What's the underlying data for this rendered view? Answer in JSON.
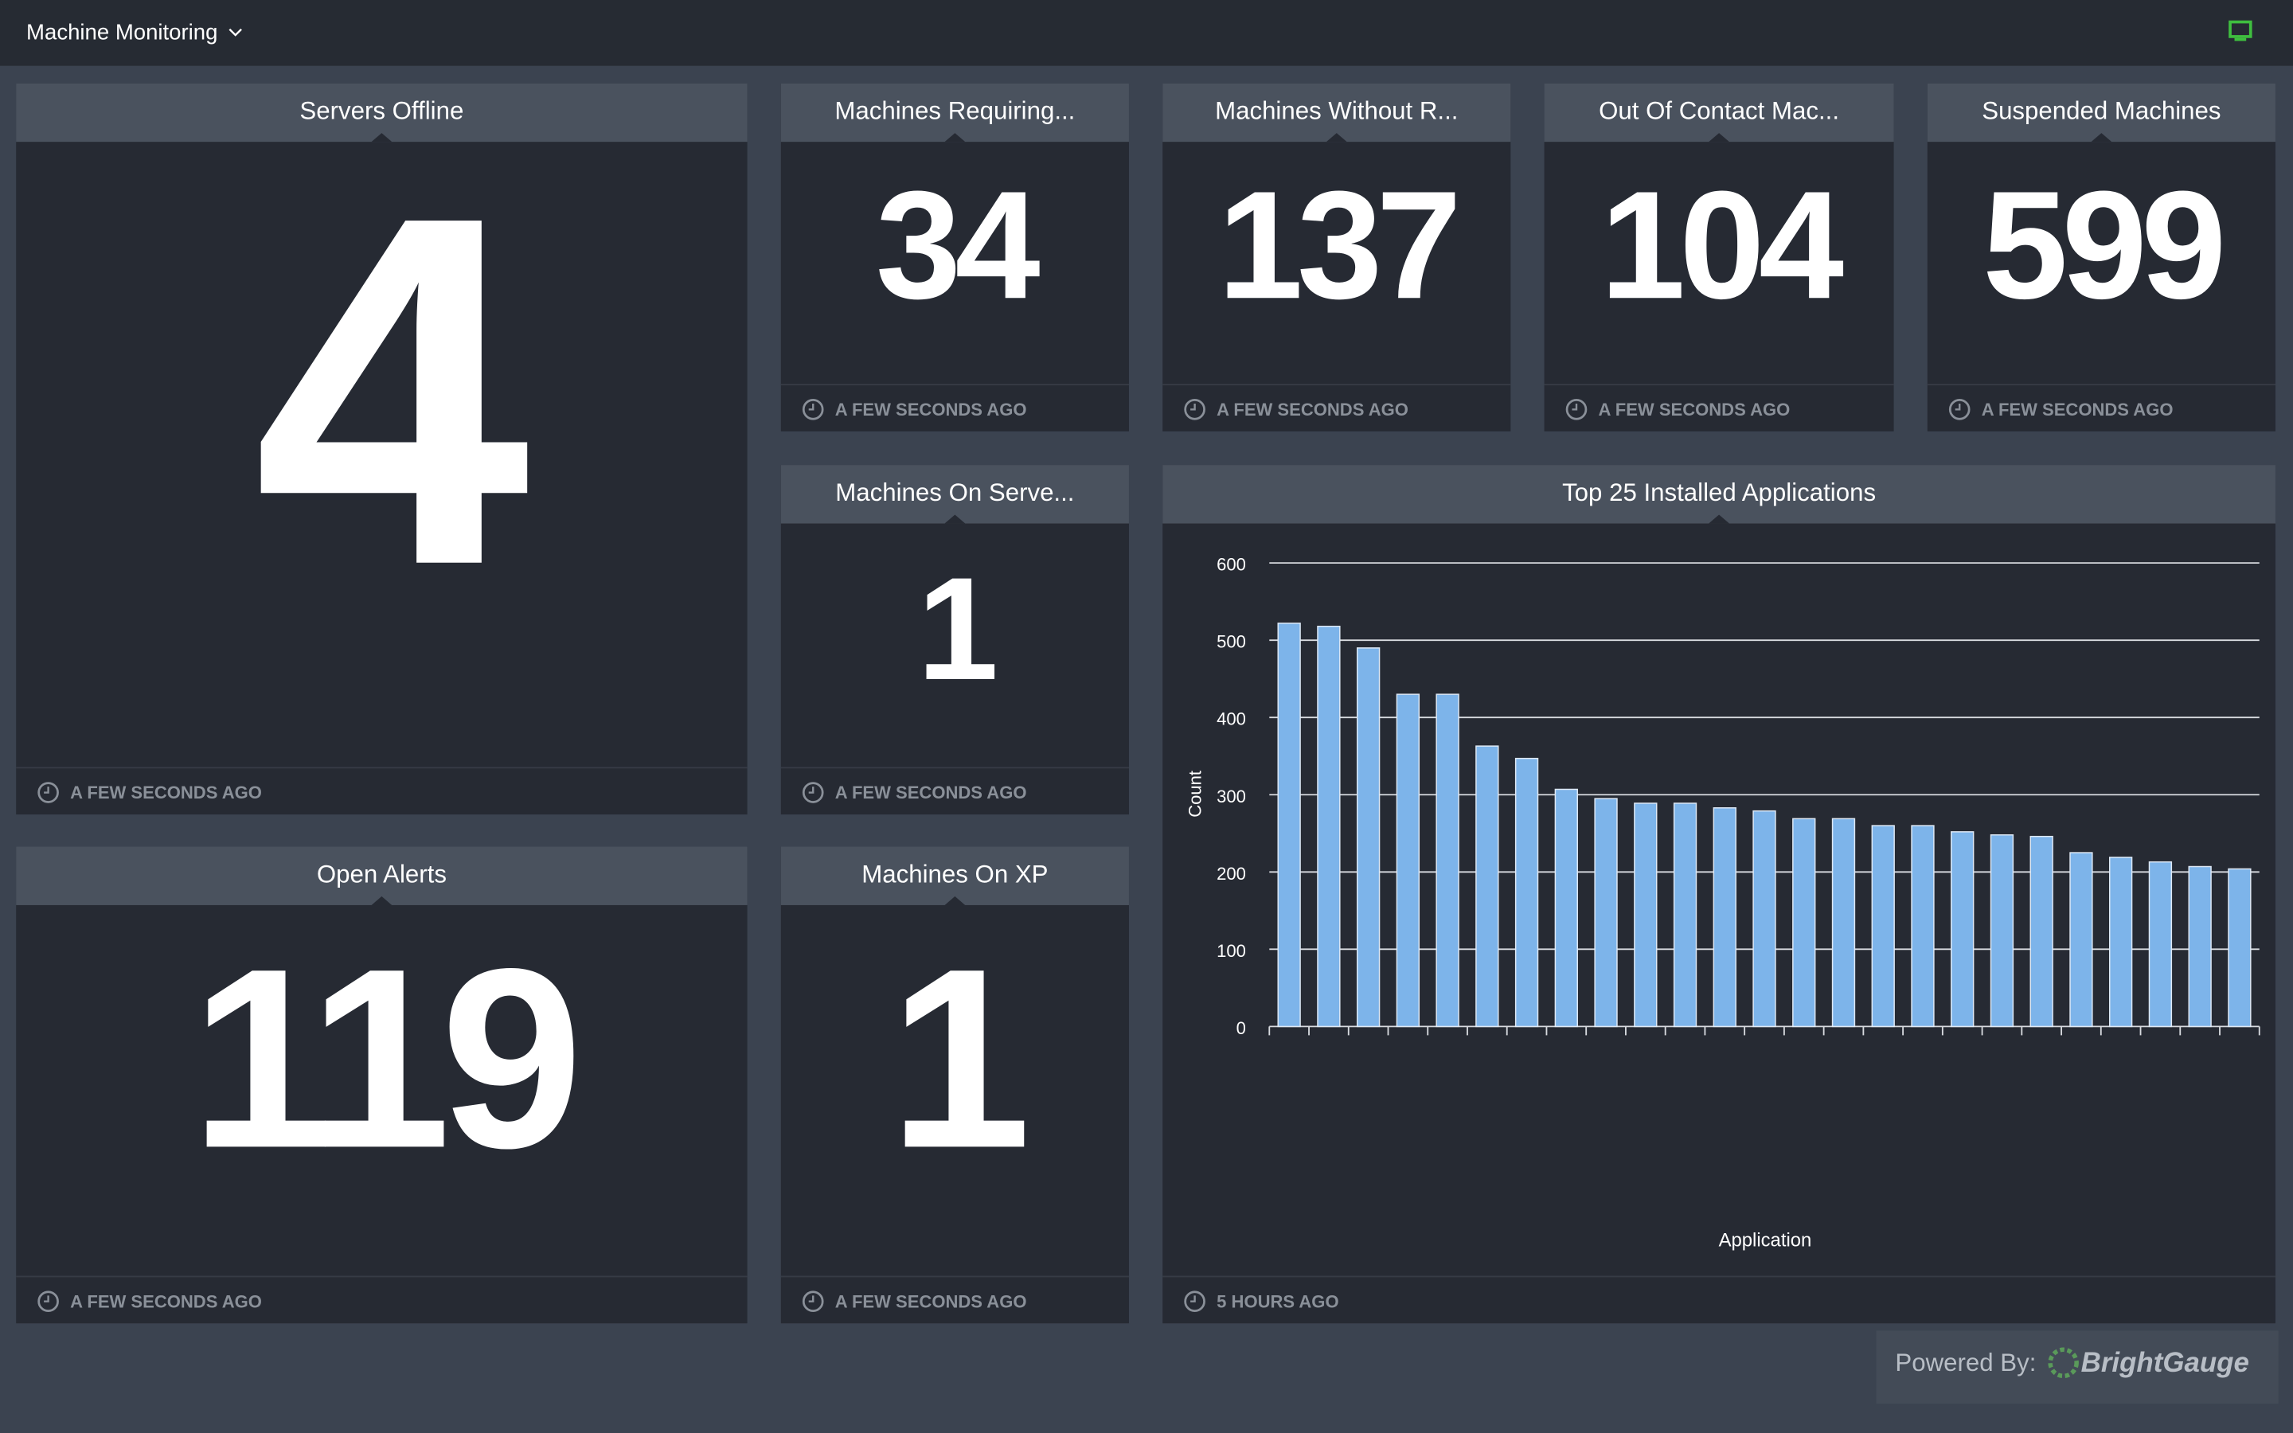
{
  "header": {
    "title": "Machine Monitoring"
  },
  "widgets": [
    {
      "title": "Servers Offline",
      "value": "4",
      "updated": "A FEW SECONDS AGO"
    },
    {
      "title": "Machines Requiring...",
      "value": "34",
      "updated": "A FEW SECONDS AGO"
    },
    {
      "title": "Machines Without R...",
      "value": "137",
      "updated": "A FEW SECONDS AGO"
    },
    {
      "title": "Out Of Contact Mac...",
      "value": "104",
      "updated": "A FEW SECONDS AGO"
    },
    {
      "title": "Suspended Machines",
      "value": "599",
      "updated": "A FEW SECONDS AGO"
    },
    {
      "title": "Machines On Serve...",
      "value": "1",
      "updated": "A FEW SECONDS AGO"
    },
    {
      "title": "Open Alerts",
      "value": "119",
      "updated": "A FEW SECONDS AGO"
    },
    {
      "title": "Machines On XP",
      "value": "1",
      "updated": "A FEW SECONDS AGO"
    }
  ],
  "chart_data": {
    "type": "bar",
    "title": "Top 25 Installed Applications",
    "updated": "5 HOURS AGO",
    "x_label": "Application",
    "y_label": "Count",
    "categories": [
      null,
      null,
      null,
      null,
      null,
      null,
      null,
      null,
      null,
      null,
      null,
      null,
      null,
      null,
      null,
      null,
      null,
      null,
      null,
      null,
      null,
      null,
      null,
      null,
      null
    ],
    "values": [
      522,
      518,
      490,
      430,
      430,
      363,
      347,
      307,
      295,
      289,
      289,
      283,
      279,
      269,
      269,
      260,
      260,
      252,
      248,
      246,
      225,
      219,
      213,
      207,
      204
    ],
    "color": "#7db4ea",
    "ylim": [
      0,
      600
    ],
    "yticks": [
      0,
      100,
      200,
      300,
      400,
      500,
      600
    ],
    "grid": true
  },
  "footer": {
    "powered": "Powered By:",
    "brand": "BrightGauge"
  }
}
